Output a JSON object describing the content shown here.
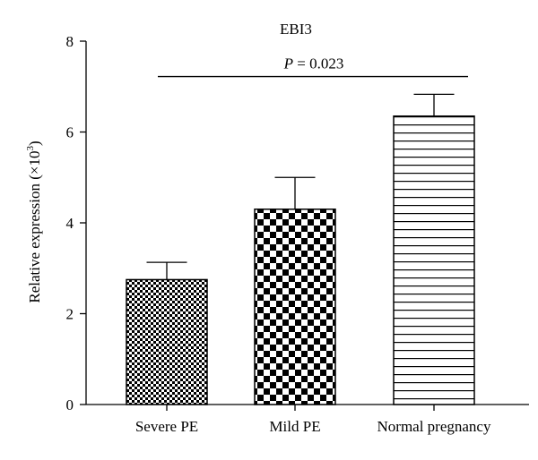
{
  "chart_data": {
    "type": "bar",
    "title": "EBI3",
    "ylabel": "Relative expression (×10",
    "ylabel_exp": "3",
    "ylabel_close": ")",
    "xlabel": "",
    "ylim": [
      0,
      8
    ],
    "yticks": [
      0,
      2,
      4,
      6,
      8
    ],
    "categories": [
      "Severe PE",
      "Mild PE",
      "Normal pregnancy"
    ],
    "values": [
      2.75,
      4.3,
      6.35
    ],
    "errors": [
      0.38,
      0.7,
      0.48
    ],
    "patterns": [
      "fine-checker",
      "coarse-checker",
      "horizontal-lines"
    ],
    "annotation": {
      "p_symbol": "P",
      "p_text": " = 0.023",
      "from_category": 0,
      "to_category": 2,
      "y_level": 7.22
    },
    "grid": false,
    "legend": "none"
  }
}
